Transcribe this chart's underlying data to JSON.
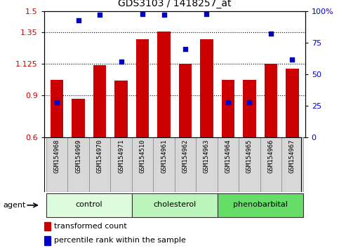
{
  "title": "GDS3103 / 1418257_at",
  "samples": [
    "GSM154968",
    "GSM154969",
    "GSM154970",
    "GSM154971",
    "GSM154510",
    "GSM154961",
    "GSM154962",
    "GSM154963",
    "GSM154964",
    "GSM154965",
    "GSM154966",
    "GSM154967"
  ],
  "bar_values": [
    1.01,
    0.875,
    1.115,
    1.005,
    1.3,
    1.355,
    1.125,
    1.3,
    1.01,
    1.01,
    1.125,
    1.09
  ],
  "scatter_values": [
    28,
    93,
    97,
    60,
    98,
    97,
    70,
    98,
    28,
    28,
    82,
    62
  ],
  "ylim_left": [
    0.6,
    1.5
  ],
  "ylim_right": [
    0,
    100
  ],
  "yticks_left": [
    0.6,
    0.9,
    1.125,
    1.35,
    1.5
  ],
  "ytick_labels_left": [
    "0.6",
    "0.9",
    "1.125",
    "1.35",
    "1.5"
  ],
  "yticks_right": [
    0,
    25,
    50,
    75,
    100
  ],
  "ytick_labels_right": [
    "0",
    "25",
    "50",
    "75",
    "100%"
  ],
  "hlines": [
    0.9,
    1.125,
    1.35
  ],
  "bar_color": "#cc0000",
  "scatter_color": "#0000cc",
  "groups": [
    {
      "label": "control",
      "start": 0,
      "end": 3,
      "color": "#ddfcdd"
    },
    {
      "label": "cholesterol",
      "start": 4,
      "end": 7,
      "color": "#bbf5bb"
    },
    {
      "label": "phenobarbital",
      "start": 8,
      "end": 11,
      "color": "#66dd66"
    }
  ],
  "agent_label": "agent",
  "legend_bar_label": "transformed count",
  "legend_scatter_label": "percentile rank within the sample",
  "fig_width": 4.83,
  "fig_height": 3.54,
  "dpi": 100
}
